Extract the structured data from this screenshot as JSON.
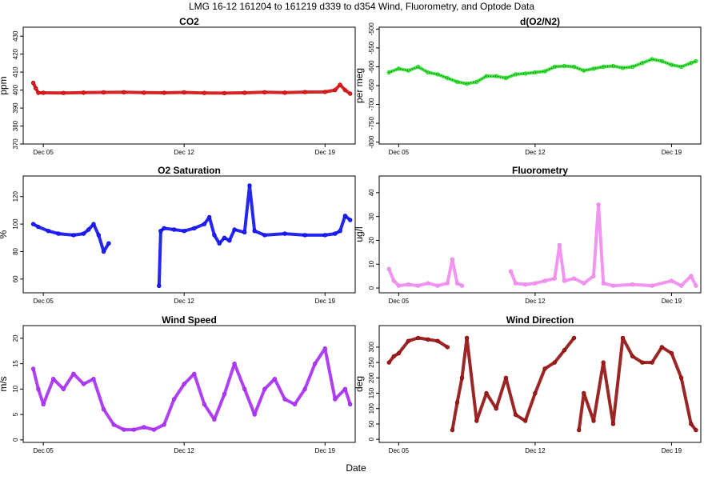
{
  "figure": {
    "title": "LMG  16-12    161204 to 161219    d339 to d354   Wind, Fluorometry, and Optode Data",
    "xlabel": "Date"
  },
  "chart_data": [
    {
      "type": "scatter",
      "title": "CO2",
      "ylabel": "ppm",
      "xlim": [
        "2016-12-04T00:00",
        "2016-12-20T12:00"
      ],
      "ylim": [
        370,
        435
      ],
      "yticks": [
        370,
        380,
        390,
        400,
        410,
        420,
        430
      ],
      "xticks": [
        {
          "date": "2016-12-05",
          "label": "Dec 05"
        },
        {
          "date": "2016-12-12",
          "label": "Dec 12"
        },
        {
          "date": "2016-12-19",
          "label": "Dec 19"
        }
      ],
      "color": "#cc0000",
      "series": [
        {
          "x": [
            "2016-12-04T12:00",
            "2016-12-04T15:00",
            "2016-12-04T18:00",
            "2016-12-05T00:00",
            "2016-12-06T00:00",
            "2016-12-07T00:00",
            "2016-12-08T00:00",
            "2016-12-09T00:00",
            "2016-12-10T00:00",
            "2016-12-11T00:00",
            "2016-12-12T00:00",
            "2016-12-13T00:00",
            "2016-12-14T00:00",
            "2016-12-15T00:00",
            "2016-12-16T00:00",
            "2016-12-17T00:00",
            "2016-12-18T00:00",
            "2016-12-19T00:00",
            "2016-12-19T12:00",
            "2016-12-19T18:00",
            "2016-12-20T00:00",
            "2016-12-20T06:00"
          ],
          "y": [
            404,
            401,
            398.5,
            398.5,
            398.4,
            398.6,
            398.7,
            398.8,
            398.6,
            398.5,
            398.7,
            398.4,
            398.3,
            398.5,
            398.8,
            398.6,
            398.9,
            399,
            400,
            403,
            400,
            398
          ]
        }
      ]
    },
    {
      "type": "scatter",
      "title": "d(O2/N2)",
      "ylabel": "per meg",
      "xlim": [
        "2016-12-04T00:00",
        "2016-12-20T12:00"
      ],
      "ylim": [
        -805,
        -495
      ],
      "yticks": [
        -800,
        -750,
        -700,
        -650,
        -600,
        -550,
        -500
      ],
      "xticks": [
        {
          "date": "2016-12-05",
          "label": "Dec 05"
        },
        {
          "date": "2016-12-12",
          "label": "Dec 12"
        },
        {
          "date": "2016-12-19",
          "label": "Dec 19"
        }
      ],
      "color": "#22dd22",
      "series": [
        {
          "name": "raw",
          "x": [
            "2016-12-04T12:00",
            "2016-12-05T00:00",
            "2016-12-05T12:00",
            "2016-12-06T00:00",
            "2016-12-06T12:00",
            "2016-12-07T00:00",
            "2016-12-07T12:00",
            "2016-12-08T00:00",
            "2016-12-08T12:00",
            "2016-12-09T00:00",
            "2016-12-09T12:00",
            "2016-12-10T00:00",
            "2016-12-10T12:00",
            "2016-12-11T00:00",
            "2016-12-11T12:00",
            "2016-12-12T00:00",
            "2016-12-12T12:00",
            "2016-12-13T00:00",
            "2016-12-13T12:00",
            "2016-12-14T00:00",
            "2016-12-14T12:00",
            "2016-12-15T00:00",
            "2016-12-15T12:00",
            "2016-12-16T00:00",
            "2016-12-16T12:00",
            "2016-12-17T00:00",
            "2016-12-17T12:00",
            "2016-12-18T00:00",
            "2016-12-18T12:00",
            "2016-12-19T00:00",
            "2016-12-19T12:00",
            "2016-12-20T00:00",
            "2016-12-20T06:00"
          ],
          "y": [
            -615,
            -605,
            -610,
            -600,
            -615,
            -620,
            -630,
            -640,
            -645,
            -640,
            -625,
            -625,
            -630,
            -620,
            -618,
            -615,
            -612,
            -600,
            -598,
            -600,
            -610,
            -605,
            -600,
            -598,
            -603,
            -600,
            -590,
            -580,
            -585,
            -595,
            -600,
            -590,
            -585
          ]
        }
      ]
    },
    {
      "type": "scatter",
      "title": "O2 Saturation",
      "ylabel": "%",
      "xlim": [
        "2016-12-04T00:00",
        "2016-12-20T12:00"
      ],
      "ylim": [
        50,
        135
      ],
      "yticks": [
        60,
        80,
        100,
        120
      ],
      "xticks": [
        {
          "date": "2016-12-05",
          "label": "Dec 05"
        },
        {
          "date": "2016-12-12",
          "label": "Dec 12"
        },
        {
          "date": "2016-12-19",
          "label": "Dec 19"
        }
      ],
      "color": "#0000ee",
      "series": [
        {
          "x": [
            "2016-12-04T12:00",
            "2016-12-04T18:00",
            "2016-12-05T06:00",
            "2016-12-05T18:00",
            "2016-12-06T12:00",
            "2016-12-07T00:00",
            "2016-12-07T06:00",
            "2016-12-07T12:00",
            "2016-12-07T18:00",
            "2016-12-08T00:00",
            "2016-12-08T06:00"
          ],
          "y": [
            100,
            98,
            95,
            93,
            92,
            93,
            96,
            100,
            92,
            80,
            86
          ]
        },
        {
          "x": [
            "2016-12-10T18:00",
            "2016-12-10T20:00",
            "2016-12-11T00:00",
            "2016-12-11T12:00",
            "2016-12-12T00:00",
            "2016-12-12T12:00",
            "2016-12-13T00:00",
            "2016-12-13T06:00",
            "2016-12-13T12:00",
            "2016-12-13T18:00",
            "2016-12-14T00:00",
            "2016-12-14T06:00",
            "2016-12-14T12:00",
            "2016-12-15T00:00",
            "2016-12-15T06:00",
            "2016-12-15T12:00",
            "2016-12-16T00:00",
            "2016-12-17T00:00",
            "2016-12-18T00:00",
            "2016-12-19T00:00",
            "2016-12-19T12:00",
            "2016-12-19T18:00",
            "2016-12-20T00:00",
            "2016-12-20T06:00"
          ],
          "y": [
            55,
            95,
            97,
            96,
            95,
            97,
            100,
            105,
            92,
            86,
            90,
            88,
            96,
            94,
            128,
            95,
            92,
            93,
            92,
            92,
            93,
            95,
            106,
            103
          ]
        }
      ]
    },
    {
      "type": "scatter",
      "title": "Fluorometry",
      "ylabel": "ug/l",
      "xlim": [
        "2016-12-04T00:00",
        "2016-12-20T12:00"
      ],
      "ylim": [
        -2,
        47
      ],
      "yticks": [
        0,
        10,
        20,
        30,
        40
      ],
      "xticks": [
        {
          "date": "2016-12-05",
          "label": "Dec 05"
        },
        {
          "date": "2016-12-12",
          "label": "Dec 12"
        },
        {
          "date": "2016-12-19",
          "label": "Dec 19"
        }
      ],
      "color": "#ee82ee",
      "series": [
        {
          "x": [
            "2016-12-04T12:00",
            "2016-12-04T18:00",
            "2016-12-05T00:00",
            "2016-12-05T12:00",
            "2016-12-06T00:00",
            "2016-12-06T12:00",
            "2016-12-07T00:00",
            "2016-12-07T12:00",
            "2016-12-07T18:00",
            "2016-12-08T00:00",
            "2016-12-08T06:00"
          ],
          "y": [
            8,
            3,
            1,
            1.5,
            1,
            2,
            1,
            2,
            12,
            2,
            1
          ]
        },
        {
          "x": [
            "2016-12-10T18:00",
            "2016-12-11T00:00",
            "2016-12-11T12:00",
            "2016-12-12T00:00",
            "2016-12-12T12:00",
            "2016-12-13T00:00",
            "2016-12-13T06:00",
            "2016-12-13T12:00",
            "2016-12-14T00:00",
            "2016-12-14T12:00",
            "2016-12-15T00:00",
            "2016-12-15T06:00",
            "2016-12-15T12:00",
            "2016-12-16T00:00",
            "2016-12-17T00:00",
            "2016-12-18T00:00",
            "2016-12-19T00:00",
            "2016-12-19T12:00",
            "2016-12-20T00:00",
            "2016-12-20T06:00"
          ],
          "y": [
            7,
            2,
            1.5,
            2,
            3,
            4,
            18,
            3,
            4,
            2,
            5,
            35,
            2,
            1,
            1.5,
            1,
            3,
            1,
            5,
            1
          ]
        }
      ]
    },
    {
      "type": "scatter",
      "title": "Wind Speed",
      "ylabel": "m/s",
      "xlim": [
        "2016-12-04T00:00",
        "2016-12-20T12:00"
      ],
      "ylim": [
        -0.5,
        22.5
      ],
      "yticks": [
        0,
        5,
        10,
        15,
        20
      ],
      "xticks": [
        {
          "date": "2016-12-05",
          "label": "Dec 05"
        },
        {
          "date": "2016-12-12",
          "label": "Dec 12"
        },
        {
          "date": "2016-12-19",
          "label": "Dec 19"
        }
      ],
      "color": "#a020f0",
      "series": [
        {
          "x": [
            "2016-12-04T12:00",
            "2016-12-04T18:00",
            "2016-12-05T00:00",
            "2016-12-05T12:00",
            "2016-12-06T00:00",
            "2016-12-06T12:00",
            "2016-12-07T00:00",
            "2016-12-07T12:00",
            "2016-12-08T00:00",
            "2016-12-08T12:00",
            "2016-12-09T00:00",
            "2016-12-09T12:00",
            "2016-12-10T00:00",
            "2016-12-10T12:00",
            "2016-12-11T00:00",
            "2016-12-11T12:00",
            "2016-12-12T00:00",
            "2016-12-12T12:00",
            "2016-12-13T00:00",
            "2016-12-13T12:00",
            "2016-12-14T00:00",
            "2016-12-14T12:00",
            "2016-12-15T00:00",
            "2016-12-15T12:00",
            "2016-12-16T00:00",
            "2016-12-16T12:00",
            "2016-12-17T00:00",
            "2016-12-17T12:00",
            "2016-12-18T00:00",
            "2016-12-18T12:00",
            "2016-12-19T00:00",
            "2016-12-19T12:00",
            "2016-12-20T00:00",
            "2016-12-20T06:00"
          ],
          "y": [
            14,
            10,
            7,
            12,
            10,
            13,
            11,
            12,
            6,
            3,
            2,
            2,
            2.5,
            2,
            3,
            8,
            11,
            13,
            7,
            4,
            9,
            15,
            10,
            5,
            10,
            12,
            8,
            7,
            10,
            15,
            18,
            8,
            10,
            7
          ]
        }
      ]
    },
    {
      "type": "scatter",
      "title": "Wind Direction",
      "ylabel": "deg",
      "xlim": [
        "2016-12-04T00:00",
        "2016-12-20T12:00"
      ],
      "ylim": [
        -10,
        370
      ],
      "yticks": [
        0,
        50,
        100,
        150,
        200,
        250,
        300
      ],
      "xticks": [
        {
          "date": "2016-12-05",
          "label": "Dec 05"
        },
        {
          "date": "2016-12-12",
          "label": "Dec 12"
        },
        {
          "date": "2016-12-19",
          "label": "Dec 19"
        }
      ],
      "color": "#8b0000",
      "series": [
        {
          "x": [
            "2016-12-04T12:00",
            "2016-12-04T18:00",
            "2016-12-05T00:00",
            "2016-12-05T12:00",
            "2016-12-06T00:00",
            "2016-12-06T12:00",
            "2016-12-07T00:00",
            "2016-12-07T12:00"
          ],
          "y": [
            250,
            270,
            280,
            320,
            330,
            325,
            320,
            300
          ]
        },
        {
          "x": [
            "2016-12-07T18:00",
            "2016-12-08T00:00",
            "2016-12-08T06:00",
            "2016-12-08T12:00",
            "2016-12-09T00:00",
            "2016-12-09T12:00",
            "2016-12-10T00:00",
            "2016-12-10T12:00",
            "2016-12-11T00:00",
            "2016-12-11T12:00",
            "2016-12-12T00:00",
            "2016-12-12T12:00",
            "2016-12-13T00:00",
            "2016-12-13T12:00",
            "2016-12-14T00:00"
          ],
          "y": [
            30,
            120,
            200,
            330,
            60,
            150,
            100,
            200,
            80,
            60,
            150,
            230,
            250,
            290,
            330
          ]
        },
        {
          "x": [
            "2016-12-14T06:00",
            "2016-12-14T12:00",
            "2016-12-15T00:00",
            "2016-12-15T12:00",
            "2016-12-16T00:00",
            "2016-12-16T12:00",
            "2016-12-17T00:00",
            "2016-12-17T12:00",
            "2016-12-18T00:00",
            "2016-12-18T12:00",
            "2016-12-19T00:00",
            "2016-12-19T12:00",
            "2016-12-20T00:00",
            "2016-12-20T06:00"
          ],
          "y": [
            30,
            150,
            60,
            250,
            50,
            330,
            270,
            250,
            250,
            300,
            280,
            200,
            50,
            30
          ]
        }
      ]
    }
  ]
}
